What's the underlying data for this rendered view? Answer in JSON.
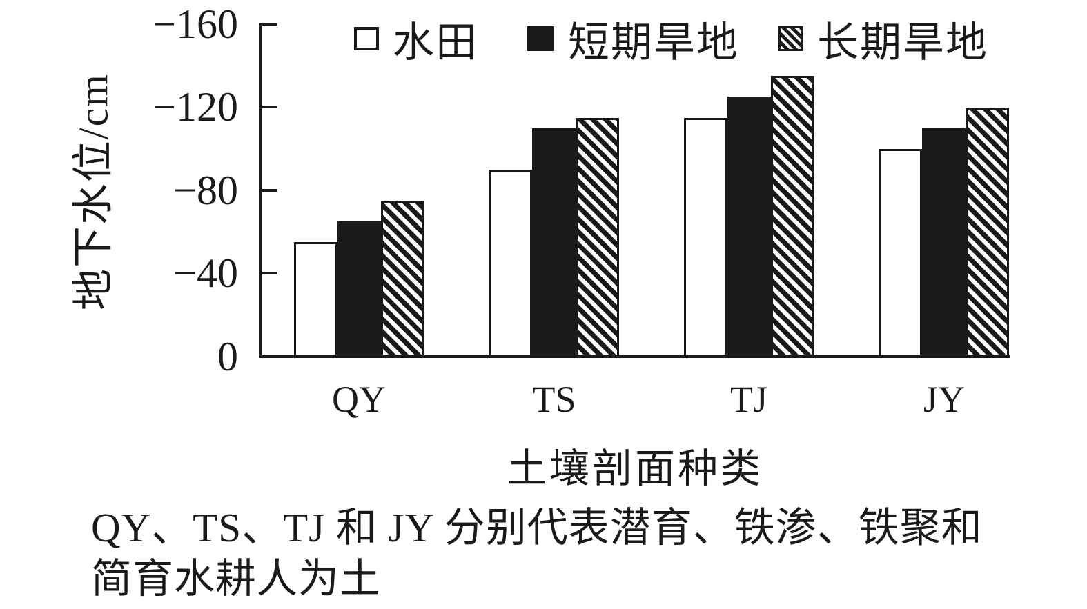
{
  "chart_data": {
    "type": "bar",
    "title": "",
    "categories": [
      "QY",
      "TS",
      "TJ",
      "JY"
    ],
    "series": [
      {
        "name": "水田",
        "style": "open",
        "values": [
          -55,
          -90,
          -115,
          -100
        ]
      },
      {
        "name": "短期旱地",
        "style": "solid",
        "values": [
          -65,
          -110,
          -125,
          -110
        ]
      },
      {
        "name": "长期旱地",
        "style": "hatched",
        "values": [
          -75,
          -115,
          -135,
          -120
        ]
      }
    ],
    "xlabel": "土壤剖面种类",
    "ylabel": "地下水位/cm",
    "ylim": [
      0,
      -160
    ],
    "y_ticks": [
      "−160",
      "−120",
      "−80",
      "−40",
      "0"
    ],
    "grid": false,
    "legend_position": "top",
    "bar_color_open": "#ffffff",
    "bar_color_solid": "#1a1a1a",
    "hatch_pattern": "diagonal-45"
  },
  "caption": {
    "line1": "QY、TS、TJ 和 JY 分别代表潜育、铁渗、铁聚和",
    "line2": "简育水耕人为土"
  },
  "colors": {
    "ink": "#1a1a1a",
    "background": "#ffffff"
  }
}
